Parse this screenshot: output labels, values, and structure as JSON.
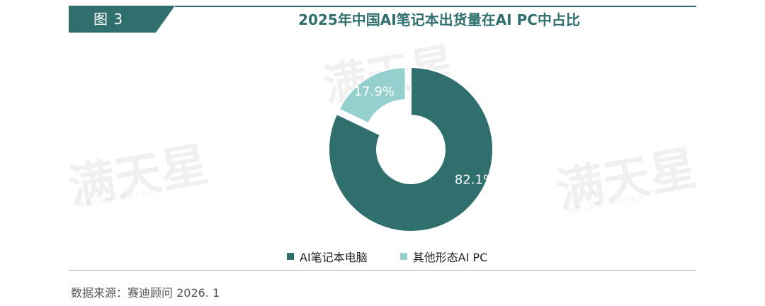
{
  "header": {
    "tag": "图 3",
    "title": "2025年中国AI笔记本出货量在AI PC中占比"
  },
  "chart_data": {
    "type": "pie",
    "title": "2025年中国AI笔记本出货量在AI PC中占比",
    "donut": true,
    "series": [
      {
        "name": "AI笔记本电脑",
        "value": 82.1,
        "label": "82.1%",
        "color": "#2f6f6e"
      },
      {
        "name": "其他形态AI PC",
        "value": 17.9,
        "label": "17.9%",
        "color": "#95d0cf"
      }
    ],
    "legend_placement": "bottom"
  },
  "watermark": {
    "text": "满天星",
    "subtext": "数据 | 报告 | 研究 | 资讯"
  },
  "footer": {
    "source": "数据来源：赛迪顾问 2026. 1"
  }
}
